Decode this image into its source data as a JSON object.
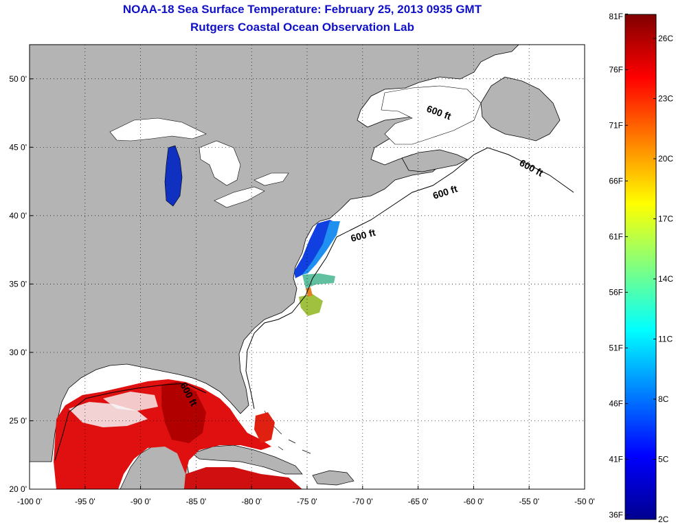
{
  "title": "NOAA-18 Sea Surface Temperature:  February 25, 2013 0935 GMT",
  "subtitle": "Rutgers Coastal Ocean Observation Lab",
  "axes": {
    "x_ticks": [
      {
        "value": -100,
        "label": "-100 0'"
      },
      {
        "value": -95,
        "label": "-95 0'"
      },
      {
        "value": -90,
        "label": "-90 0'"
      },
      {
        "value": -85,
        "label": "-85 0'"
      },
      {
        "value": -80,
        "label": "-80 0'"
      },
      {
        "value": -75,
        "label": "-75 0'"
      },
      {
        "value": -70,
        "label": "-70 0'"
      },
      {
        "value": -65,
        "label": "-65 0'"
      },
      {
        "value": -60,
        "label": "-60 0'"
      },
      {
        "value": -55,
        "label": "-55 0'"
      },
      {
        "value": -50,
        "label": "-50 0'"
      }
    ],
    "y_ticks": [
      {
        "value": 50,
        "label": "50 0'"
      },
      {
        "value": 45,
        "label": "45 0'"
      },
      {
        "value": 40,
        "label": "40 0'"
      },
      {
        "value": 35,
        "label": "35 0'"
      },
      {
        "value": 30,
        "label": "30 0'"
      },
      {
        "value": 25,
        "label": "25 0'"
      },
      {
        "value": 20,
        "label": "20 0'"
      }
    ],
    "lon_range": [
      -100,
      -50
    ],
    "lat_range": [
      20,
      52.5
    ],
    "grid": true
  },
  "contour_labels": [
    "600 ft",
    "600 ft",
    "600 ft",
    "600 ft",
    "600 ft"
  ],
  "colorbar": {
    "range_c": [
      2,
      27.2
    ],
    "fahrenheit_labels": [
      "81F",
      "76F",
      "71F",
      "66F",
      "61F",
      "56F",
      "51F",
      "46F",
      "41F",
      "36F"
    ],
    "celsius_labels": [
      "26C",
      "23C",
      "20C",
      "17C",
      "14C",
      "11C",
      "8C",
      "5C",
      "2C"
    ],
    "colors": [
      "#00008f",
      "#0000ff",
      "#0080ff",
      "#00ffff",
      "#80ff80",
      "#ffff00",
      "#ff8000",
      "#ff0000",
      "#800000"
    ]
  },
  "colors": {
    "land": "#b4b4b4",
    "ocean_no_data": "#ffffff",
    "title": "#1010c8"
  }
}
